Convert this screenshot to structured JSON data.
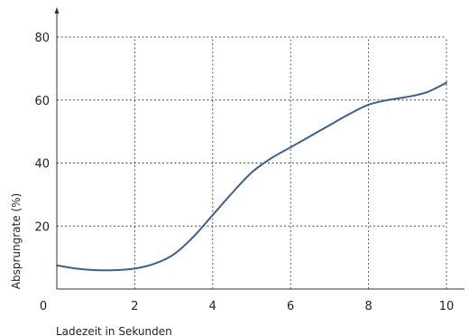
{
  "chart_data": {
    "type": "line",
    "title": "",
    "xlabel": "Ladezeit in Sekunden",
    "ylabel": "Absprungrate (%)",
    "xlim": [
      0,
      10
    ],
    "ylim": [
      0,
      80
    ],
    "xticks": [
      2,
      4,
      6,
      8,
      10
    ],
    "yticks": [
      20,
      40,
      60,
      80
    ],
    "origin_label": "0",
    "grid": true,
    "line_color": "#3d5f8e",
    "series": [
      {
        "x": [
          0,
          0.5,
          1,
          1.5,
          2,
          2.5,
          3,
          3.5,
          4,
          4.5,
          5,
          5.5,
          6,
          6.5,
          7,
          7.5,
          8,
          8.5,
          9,
          9.5,
          10
        ],
        "values": [
          7.5,
          6.5,
          6.0,
          6.0,
          6.5,
          8.0,
          11.0,
          16.5,
          23.5,
          30.5,
          37.0,
          41.5,
          45.0,
          48.5,
          52.0,
          55.5,
          58.5,
          60.0,
          61.0,
          62.5,
          65.5
        ]
      }
    ]
  }
}
